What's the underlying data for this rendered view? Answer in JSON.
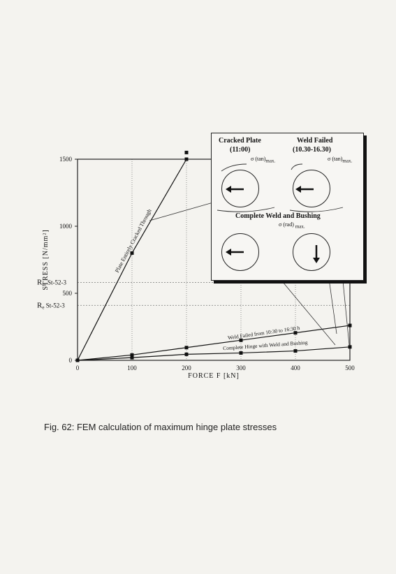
{
  "chart_data": {
    "type": "line",
    "xlabel": "FORCE  F  [kN]",
    "ylabel": "STRESS  [N/mm²]",
    "xlim": [
      0,
      500
    ],
    "ylim": [
      0,
      1500
    ],
    "x_ticks": [
      "0",
      "100",
      "200",
      "300",
      "400",
      "500"
    ],
    "y_ticks": [
      "0",
      "500",
      "1000",
      "1500"
    ],
    "reference_lines": [
      {
        "label_main": "R",
        "label_sub": "m",
        "label_rest": "St-52-3",
        "value": 580
      },
      {
        "label_main": "R",
        "label_sub": "e",
        "label_rest": "St-52-3",
        "value": 410
      }
    ],
    "series": [
      {
        "name": "Plate Entirely Cracked Through",
        "x": [
          0,
          100,
          200
        ],
        "y": [
          0,
          800,
          1500
        ]
      },
      {
        "name": "Weld Failed from 10:30 to 16:30 h",
        "x": [
          0,
          100,
          200,
          300,
          400,
          500
        ],
        "y": [
          0,
          40,
          95,
          150,
          205,
          260
        ]
      },
      {
        "name": "Complete Hinge with Weld and Bushing",
        "x": [
          0,
          100,
          200,
          300,
          400,
          500
        ],
        "y": [
          0,
          20,
          45,
          55,
          70,
          100
        ]
      }
    ],
    "outlier_point": {
      "x": 200,
      "y": 1550
    },
    "grid": "vertical dotted"
  },
  "inset": {
    "cracked_plate": "Cracked Plate",
    "cracked_plate_time": "(11:00)",
    "weld_failed": "Weld Failed",
    "weld_failed_time": "(10.30-16.30)",
    "complete": "Complete Weld and Bushing",
    "sigma_tan": "σ (tan)",
    "sigma_rad": "σ (rad)",
    "max": "max."
  },
  "caption": "Fig. 62: FEM calculation of maximum hinge plate stresses"
}
